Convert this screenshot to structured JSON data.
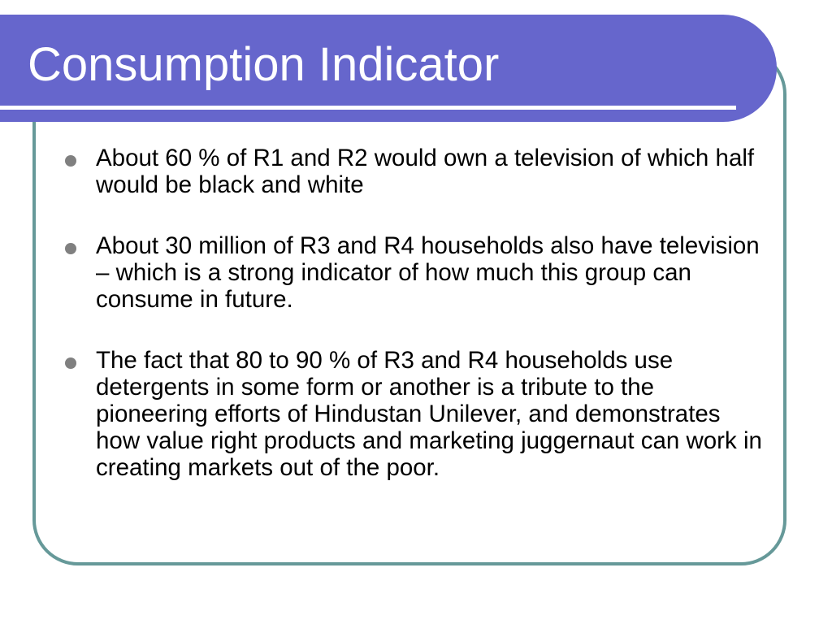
{
  "slide": {
    "title": "Consumption Indicator",
    "bullets": [
      "About 60 % of R1 and R2 would own a television of which half would be black and white",
      "About 30 million of R3 and R4 households also have television – which is a strong indicator of how much this group can consume in future.",
      "The fact that 80 to 90 % of R3 and R4 households use detergents in some form or another is a tribute to the pioneering efforts of Hindustan Unilever, and demonstrates how value right products and marketing juggernaut can work in creating markets out of the poor."
    ]
  },
  "theme": {
    "title_bar_color": "#6666cc",
    "frame_color": "#669999",
    "bullet_color": "#808080",
    "title_text_color": "#ffffff",
    "body_text_color": "#000000"
  }
}
